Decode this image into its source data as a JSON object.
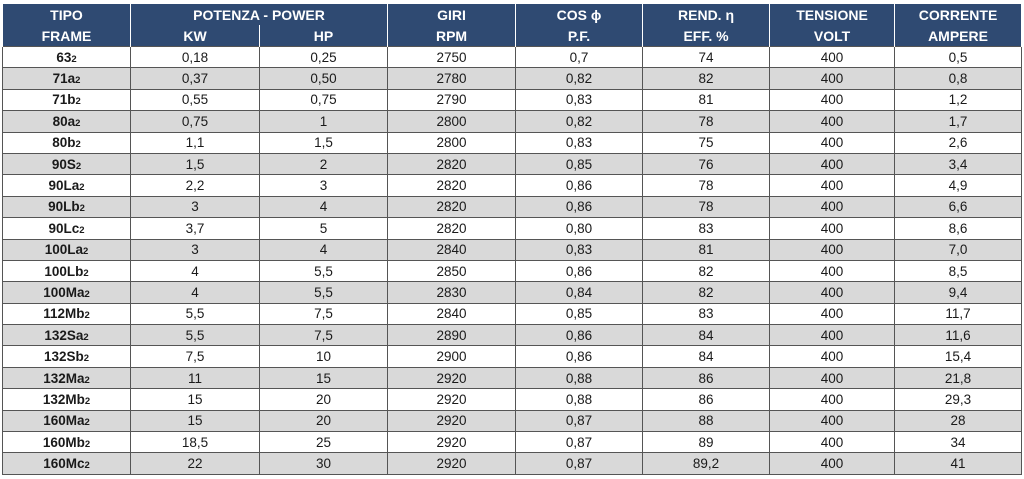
{
  "header": {
    "tipo": "TIPO",
    "frame": "FRAME",
    "potenza": "POTENZA - POWER",
    "kw": "KW",
    "hp": "HP",
    "giri": "GIRI",
    "rpm": "RPM",
    "cos": "COS ϕ",
    "pf": "P.F.",
    "rend": "REND. η",
    "eff": "EFF. %",
    "tensione": "TENSIONE",
    "volt": "VOLT",
    "corrente": "CORRENTE",
    "ampere": "AMPERE"
  },
  "rows": [
    {
      "tipo": "63",
      "poles": "2",
      "kw": "0,18",
      "hp": "0,25",
      "rpm": "2750",
      "pf": "0,7",
      "eff": "74",
      "volt": "400",
      "ampere": "0,5"
    },
    {
      "tipo": "71a",
      "poles": "2",
      "kw": "0,37",
      "hp": "0,50",
      "rpm": "2780",
      "pf": "0,82",
      "eff": "82",
      "volt": "400",
      "ampere": "0,8"
    },
    {
      "tipo": "71b",
      "poles": "2",
      "kw": "0,55",
      "hp": "0,75",
      "rpm": "2790",
      "pf": "0,83",
      "eff": "81",
      "volt": "400",
      "ampere": "1,2"
    },
    {
      "tipo": "80a",
      "poles": "2",
      "kw": "0,75",
      "hp": "1",
      "rpm": "2800",
      "pf": "0,82",
      "eff": "78",
      "volt": "400",
      "ampere": "1,7"
    },
    {
      "tipo": "80b",
      "poles": "2",
      "kw": "1,1",
      "hp": "1,5",
      "rpm": "2800",
      "pf": "0,83",
      "eff": "75",
      "volt": "400",
      "ampere": "2,6"
    },
    {
      "tipo": "90S",
      "poles": "2",
      "kw": "1,5",
      "hp": "2",
      "rpm": "2820",
      "pf": "0,85",
      "eff": "76",
      "volt": "400",
      "ampere": "3,4"
    },
    {
      "tipo": "90La",
      "poles": "2",
      "kw": "2,2",
      "hp": "3",
      "rpm": "2820",
      "pf": "0,86",
      "eff": "78",
      "volt": "400",
      "ampere": "4,9"
    },
    {
      "tipo": "90Lb",
      "poles": "2",
      "kw": "3",
      "hp": "4",
      "rpm": "2820",
      "pf": "0,86",
      "eff": "78",
      "volt": "400",
      "ampere": "6,6"
    },
    {
      "tipo": "90Lc",
      "poles": "2",
      "kw": "3,7",
      "hp": "5",
      "rpm": "2820",
      "pf": "0,80",
      "eff": "83",
      "volt": "400",
      "ampere": "8,6"
    },
    {
      "tipo": "100La",
      "poles": "2",
      "kw": "3",
      "hp": "4",
      "rpm": "2840",
      "pf": "0,83",
      "eff": "81",
      "volt": "400",
      "ampere": "7,0"
    },
    {
      "tipo": "100Lb",
      "poles": "2",
      "kw": "4",
      "hp": "5,5",
      "rpm": "2850",
      "pf": "0,86",
      "eff": "82",
      "volt": "400",
      "ampere": "8,5"
    },
    {
      "tipo": "100Ma",
      "poles": "2",
      "kw": "4",
      "hp": "5,5",
      "rpm": "2830",
      "pf": "0,84",
      "eff": "82",
      "volt": "400",
      "ampere": "9,4"
    },
    {
      "tipo": "112Mb",
      "poles": "2",
      "kw": "5,5",
      "hp": "7,5",
      "rpm": "2840",
      "pf": "0,85",
      "eff": "83",
      "volt": "400",
      "ampere": "11,7"
    },
    {
      "tipo": "132Sa",
      "poles": "2",
      "kw": "5,5",
      "hp": "7,5",
      "rpm": "2890",
      "pf": "0,86",
      "eff": "84",
      "volt": "400",
      "ampere": "11,6"
    },
    {
      "tipo": "132Sb",
      "poles": "2",
      "kw": "7,5",
      "hp": "10",
      "rpm": "2900",
      "pf": "0,86",
      "eff": "84",
      "volt": "400",
      "ampere": "15,4"
    },
    {
      "tipo": "132Ma",
      "poles": "2",
      "kw": "11",
      "hp": "15",
      "rpm": "2920",
      "pf": "0,88",
      "eff": "86",
      "volt": "400",
      "ampere": "21,8"
    },
    {
      "tipo": "132Mb",
      "poles": "2",
      "kw": "15",
      "hp": "20",
      "rpm": "2920",
      "pf": "0,88",
      "eff": "86",
      "volt": "400",
      "ampere": "29,3"
    },
    {
      "tipo": "160Ma",
      "poles": "2",
      "kw": "15",
      "hp": "20",
      "rpm": "2920",
      "pf": "0,87",
      "eff": "88",
      "volt": "400",
      "ampere": "28"
    },
    {
      "tipo": "160Mb",
      "poles": "2",
      "kw": "18,5",
      "hp": "25",
      "rpm": "2920",
      "pf": "0,87",
      "eff": "89",
      "volt": "400",
      "ampere": "34"
    },
    {
      "tipo": "160Mc",
      "poles": "2",
      "kw": "22",
      "hp": "30",
      "rpm": "2920",
      "pf": "0,87",
      "eff": "89,2",
      "volt": "400",
      "ampere": "41"
    }
  ],
  "colors": {
    "header_bg": "#2f4a72",
    "header_text": "#ffffff",
    "row_alt_bg": "#d9d9d9",
    "row_plain_bg": "#ffffff",
    "grid": "#555555"
  }
}
